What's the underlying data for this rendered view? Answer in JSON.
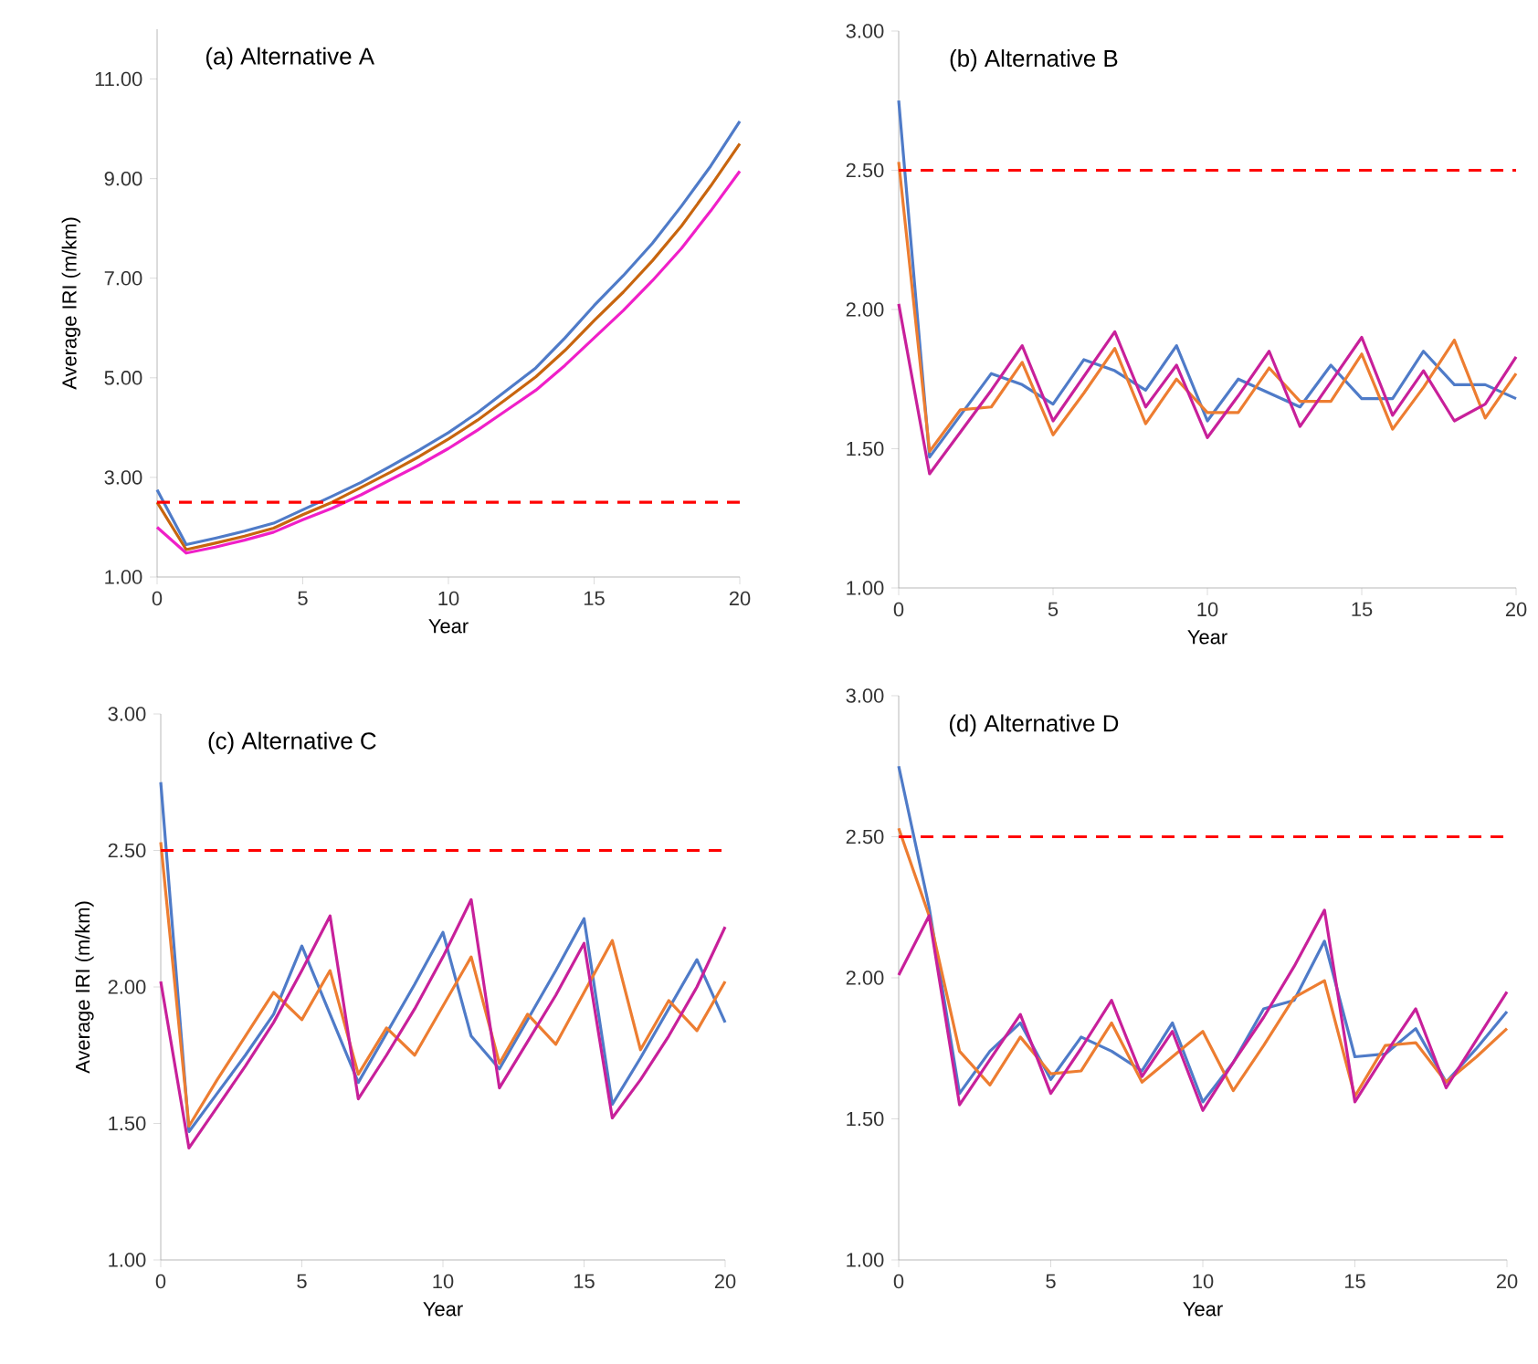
{
  "chart_data": [
    {
      "type": "line",
      "title": "(a) Alternative A",
      "xlabel": "Year",
      "ylabel": "Average IRI (m/km)",
      "x": [
        0,
        1,
        2,
        3,
        4,
        5,
        6,
        7,
        8,
        9,
        10,
        11,
        12,
        13,
        14,
        15,
        16,
        17,
        18,
        19,
        20
      ],
      "series": [
        {
          "color": "#4f7bc8",
          "values": [
            2.75,
            1.65,
            1.78,
            1.92,
            2.08,
            2.35,
            2.62,
            2.9,
            3.22,
            3.55,
            3.9,
            4.3,
            4.75,
            5.2,
            5.8,
            6.45,
            7.05,
            7.7,
            8.45,
            9.25,
            10.15
          ]
        },
        {
          "color": "#c8650e",
          "values": [
            2.5,
            1.55,
            1.68,
            1.82,
            1.98,
            2.25,
            2.5,
            2.8,
            3.1,
            3.42,
            3.77,
            4.15,
            4.58,
            5.02,
            5.55,
            6.15,
            6.72,
            7.35,
            8.05,
            8.85,
            9.7
          ]
        },
        {
          "color": "#f01fc8",
          "values": [
            2.0,
            1.48,
            1.6,
            1.74,
            1.9,
            2.15,
            2.38,
            2.65,
            2.95,
            3.25,
            3.58,
            3.95,
            4.35,
            4.75,
            5.25,
            5.8,
            6.35,
            6.95,
            7.6,
            8.35,
            9.15
          ]
        }
      ],
      "xlim": [
        0,
        20
      ],
      "xticks": [
        0,
        5,
        10,
        15,
        20
      ],
      "ylim": [
        1,
        12
      ],
      "yticks": [
        {
          "value": 1,
          "label": "1.00"
        },
        {
          "value": 3,
          "label": "3.00"
        },
        {
          "value": 5,
          "label": "5.00"
        },
        {
          "value": 7,
          "label": "7.00"
        },
        {
          "value": 9,
          "label": "9.00"
        },
        {
          "value": 11,
          "label": "11.00"
        }
      ],
      "ref_lines": [
        {
          "axis": "y",
          "value": 2.5,
          "color": "#ff0000",
          "line_style": "dashed"
        }
      ]
    },
    {
      "type": "line",
      "title": "(b) Alternative B",
      "xlabel": "Year",
      "x": [
        0,
        1,
        2,
        3,
        4,
        5,
        6,
        7,
        8,
        9,
        10,
        11,
        12,
        13,
        14,
        15,
        16,
        17,
        18,
        19,
        20
      ],
      "series": [
        {
          "color": "#4f7bc8",
          "values": [
            2.75,
            1.47,
            1.62,
            1.77,
            1.73,
            1.66,
            1.82,
            1.78,
            1.71,
            1.87,
            1.6,
            1.75,
            1.7,
            1.65,
            1.8,
            1.68,
            1.68,
            1.85,
            1.73,
            1.73,
            1.68
          ]
        },
        {
          "color": "#ed7d31",
          "values": [
            2.53,
            1.49,
            1.64,
            1.65,
            1.81,
            1.55,
            1.7,
            1.86,
            1.59,
            1.75,
            1.63,
            1.63,
            1.79,
            1.67,
            1.67,
            1.84,
            1.57,
            1.72,
            1.89,
            1.61,
            1.77
          ]
        },
        {
          "color": "#c8209a",
          "values": [
            2.02,
            1.41,
            1.56,
            1.71,
            1.87,
            1.6,
            1.76,
            1.92,
            1.65,
            1.8,
            1.54,
            1.69,
            1.85,
            1.58,
            1.74,
            1.9,
            1.62,
            1.78,
            1.6,
            1.66,
            1.83
          ]
        }
      ],
      "xlim": [
        0,
        20
      ],
      "xticks": [
        0,
        5,
        10,
        15,
        20
      ],
      "ylim": [
        1,
        3
      ],
      "yticks": [
        {
          "value": 1,
          "label": "1.00"
        },
        {
          "value": 1.5,
          "label": "1.50"
        },
        {
          "value": 2,
          "label": "2.00"
        },
        {
          "value": 2.5,
          "label": "2.50"
        },
        {
          "value": 3,
          "label": "3.00"
        }
      ],
      "ref_lines": [
        {
          "axis": "y",
          "value": 2.5,
          "color": "#ff0000",
          "line_style": "dashed"
        }
      ]
    },
    {
      "type": "line",
      "title": "(c) Alternative C",
      "xlabel": "Year",
      "ylabel": "Average IRI (m/km)",
      "x": [
        0,
        1,
        2,
        3,
        4,
        5,
        6,
        7,
        8,
        9,
        10,
        11,
        12,
        13,
        14,
        15,
        16,
        17,
        18,
        19,
        20
      ],
      "series": [
        {
          "color": "#4f7bc8",
          "values": [
            2.75,
            1.47,
            1.61,
            1.75,
            1.9,
            2.15,
            1.9,
            1.65,
            1.83,
            2.01,
            2.2,
            1.82,
            1.7,
            1.88,
            2.06,
            2.25,
            1.57,
            1.74,
            1.92,
            2.1,
            1.87
          ]
        },
        {
          "color": "#ed7d31",
          "values": [
            2.53,
            1.49,
            1.66,
            1.82,
            1.98,
            1.88,
            2.06,
            1.68,
            1.85,
            1.75,
            1.93,
            2.11,
            1.72,
            1.9,
            1.79,
            1.98,
            2.17,
            1.77,
            1.95,
            1.84,
            2.02
          ]
        },
        {
          "color": "#c8209a",
          "values": [
            2.02,
            1.41,
            1.56,
            1.71,
            1.87,
            2.06,
            2.26,
            1.59,
            1.75,
            1.92,
            2.11,
            2.32,
            1.63,
            1.8,
            1.97,
            2.16,
            1.52,
            1.66,
            1.82,
            2.0,
            2.22
          ]
        }
      ],
      "xlim": [
        0,
        20
      ],
      "xticks": [
        0,
        5,
        10,
        15,
        20
      ],
      "ylim": [
        1,
        3
      ],
      "yticks": [
        {
          "value": 1,
          "label": "1.00"
        },
        {
          "value": 1.5,
          "label": "1.50"
        },
        {
          "value": 2,
          "label": "2.00"
        },
        {
          "value": 2.5,
          "label": "2.50"
        },
        {
          "value": 3,
          "label": "3.00"
        }
      ],
      "ref_lines": [
        {
          "axis": "y",
          "value": 2.5,
          "color": "#ff0000",
          "line_style": "dashed"
        }
      ]
    },
    {
      "type": "line",
      "title": "(d) Alternative D",
      "xlabel": "Year",
      "x": [
        0,
        1,
        2,
        3,
        4,
        5,
        6,
        7,
        8,
        9,
        10,
        11,
        12,
        13,
        14,
        15,
        16,
        17,
        18,
        19,
        20
      ],
      "series": [
        {
          "color": "#4f7bc8",
          "values": [
            2.75,
            2.25,
            1.59,
            1.74,
            1.84,
            1.64,
            1.79,
            1.74,
            1.67,
            1.84,
            1.56,
            1.7,
            1.89,
            1.92,
            2.13,
            1.72,
            1.73,
            1.82,
            1.63,
            1.75,
            1.88
          ]
        },
        {
          "color": "#ed7d31",
          "values": [
            2.53,
            2.22,
            1.74,
            1.62,
            1.79,
            1.66,
            1.67,
            1.84,
            1.63,
            1.72,
            1.81,
            1.6,
            1.76,
            1.93,
            1.99,
            1.58,
            1.76,
            1.77,
            1.63,
            1.72,
            1.82
          ]
        },
        {
          "color": "#c8209a",
          "values": [
            2.01,
            2.22,
            1.55,
            1.71,
            1.87,
            1.59,
            1.75,
            1.92,
            1.65,
            1.81,
            1.53,
            1.7,
            1.86,
            2.04,
            2.24,
            1.56,
            1.73,
            1.89,
            1.61,
            1.78,
            1.95
          ]
        }
      ],
      "xlim": [
        0,
        20
      ],
      "xticks": [
        0,
        5,
        10,
        15,
        20
      ],
      "ylim": [
        1,
        3
      ],
      "yticks": [
        {
          "value": 1,
          "label": "1.00"
        },
        {
          "value": 1.5,
          "label": "1.50"
        },
        {
          "value": 2,
          "label": "2.00"
        },
        {
          "value": 2.5,
          "label": "2.50"
        },
        {
          "value": 3,
          "label": "3.00"
        }
      ],
      "ref_lines": [
        {
          "axis": "y",
          "value": 2.5,
          "color": "#ff0000",
          "line_style": "dashed"
        }
      ]
    }
  ]
}
